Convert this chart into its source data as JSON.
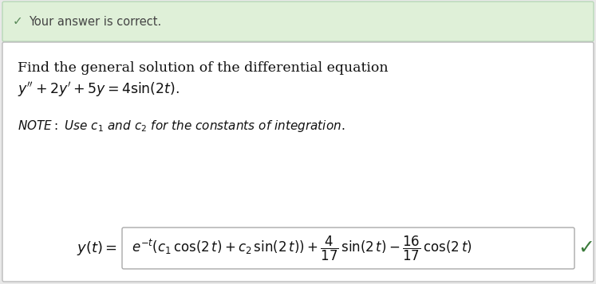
{
  "banner_text": "Your answer is correct.",
  "banner_bg": "#dff0d8",
  "banner_border": "#b8d9b8",
  "banner_check_color": "#5a8a5a",
  "page_bg": "#e8e8e8",
  "main_bg": "#ffffff",
  "main_border": "#bbbbbb",
  "question_line1": "Find the general solution of the differential equation",
  "answer_box_bg": "#ffffff",
  "answer_box_border": "#aaaaaa",
  "check_color": "#3a7a3a",
  "fig_width": 7.47,
  "fig_height": 3.57,
  "dpi": 100
}
